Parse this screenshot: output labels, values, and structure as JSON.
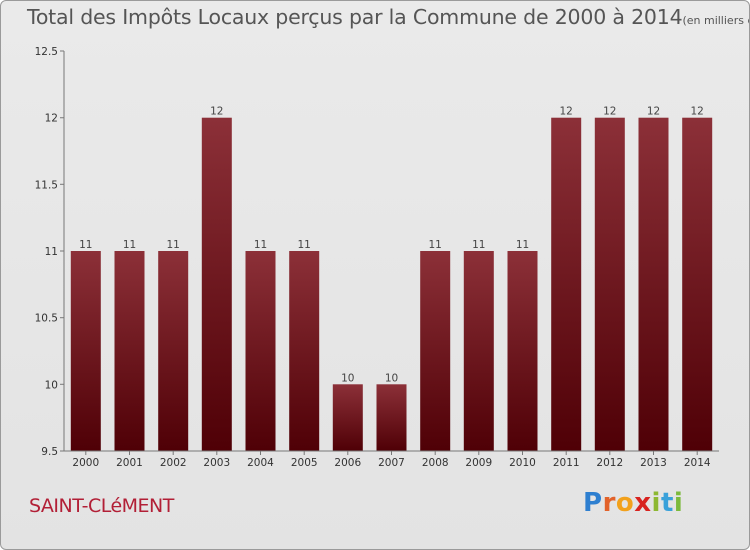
{
  "title": "Total des Impôts Locaux perçus par la Commune de 2000 à 2014",
  "unit": "(en milliers d'€)",
  "commune": "SAINT-CLéMENT",
  "logo": {
    "letters": [
      "P",
      "r",
      "o",
      "x",
      "i",
      "t",
      "i"
    ],
    "colors": [
      "#2e7fd0",
      "#e2622a",
      "#f2a11c",
      "#d8231f",
      "#8db832",
      "#3aa1da",
      "#7cba3c"
    ]
  },
  "chart_data": {
    "type": "bar",
    "title": "Total des Impôts Locaux perçus par la Commune de 2000 à 2014",
    "categories": [
      "2000",
      "2001",
      "2002",
      "2003",
      "2004",
      "2005",
      "2006",
      "2007",
      "2008",
      "2009",
      "2010",
      "2011",
      "2012",
      "2013",
      "2014"
    ],
    "values": [
      11,
      11,
      11,
      12,
      11,
      11,
      10,
      10,
      11,
      11,
      11,
      12,
      12,
      12,
      12
    ],
    "data_labels": [
      "11",
      "11",
      "11",
      "12",
      "11",
      "11",
      "10",
      "10",
      "11",
      "11",
      "11",
      "12",
      "12",
      "12",
      "12"
    ],
    "ylim": [
      9.5,
      12.5
    ],
    "yticks": [
      9.5,
      10,
      10.5,
      11,
      11.5,
      12,
      12.5
    ],
    "ytick_labels": [
      "9.5",
      "10",
      "10.5",
      "11",
      "11.5",
      "12",
      "12.5"
    ],
    "xlabel": "",
    "ylabel": "",
    "bar_color_top": "#8c3038",
    "bar_color_bottom": "#4f0006",
    "grid": false
  }
}
